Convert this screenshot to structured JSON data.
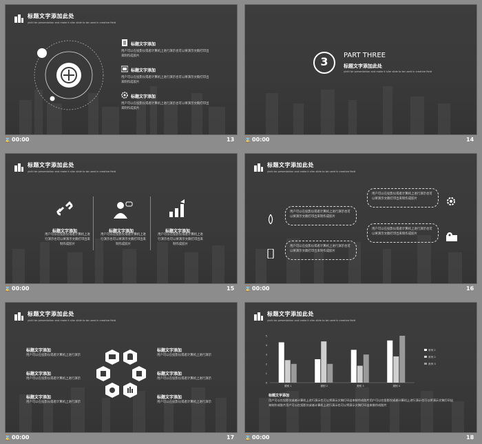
{
  "slides": {
    "s13": {
      "title": "标题文字添加此处",
      "subtitle": "yiniti be presentation and make it slim slide to be used in creative field",
      "items": [
        {
          "label": "标题文字添加",
          "text": "用户可以在投影仪或者计算机上进行演示也可以将演示文稿打印出来制作成胶片"
        },
        {
          "label": "标题文字添加",
          "text": "用户可以在投影仪或者计算机上进行演示也可以将演示文稿打印出来制作成胶片"
        },
        {
          "label": "标题文字添加",
          "text": "用户可以在投影仪或者计算机上进行演示也可以将演示文稿打印出来制作成胶片"
        }
      ],
      "time": "00:00",
      "num": "13"
    },
    "s14": {
      "badge": "3",
      "part": "PART THREE",
      "title": "标题文字添加此处",
      "subtitle": "yiniti be presentation and make it slim slide to be used in creative field",
      "time": "00:00",
      "num": "14"
    },
    "s15": {
      "title": "标题文字添加此处",
      "subtitle": "yiniti be presentation and make it slim slide to be used in creative field",
      "cols": [
        {
          "label": "标题文字添加",
          "text": "用户可以在投影仪或者计算机上进行演示也可以将演示文稿打印出来制作成胶片"
        },
        {
          "label": "标题文字添加",
          "text": "用户可以在投影仪或者计算机上进行演示也可以将演示文稿打印出来制作成胶片"
        },
        {
          "label": "标题文字添加",
          "text": "用户可以在投影仪或者计算机上进行演示也可以将演示文稿打印出来制作成胶片"
        }
      ],
      "time": "00:00",
      "num": "15"
    },
    "s16": {
      "title": "标题文字添加此处",
      "subtitle": "yiniti be presentation and make it slim slide to be used in creative field",
      "bubbles": [
        "用户可以在投影仪或者计算机上进行演示也可以将演示文稿打印出来制作成胶片",
        "用户可以在投影仪或者计算机上进行演示也可以将演示文稿打印出来制作成胶片",
        "用户可以在投影仪或者计算机上进行演示也可以将演示文稿打印出来制作成胶片",
        "用户可以在投影仪或者计算机上进行演示也可以将演示文稿打印出来制作成胶片"
      ],
      "time": "00:00",
      "num": "16"
    },
    "s17": {
      "title": "标题文字添加此处",
      "subtitle": "yiniti be presentation and make it slim slide to be used in creative field",
      "left": [
        {
          "label": "标题文字添加",
          "text": "用户可以在投影仪或者计算机上进行演示"
        },
        {
          "label": "标题文字添加",
          "text": "用户可以在投影仪或者计算机上进行演示"
        },
        {
          "label": "标题文字添加",
          "text": "用户可以在投影仪或者计算机上进行演示"
        }
      ],
      "right": [
        {
          "label": "标题文字添加",
          "text": "用户可以在投影仪或者计算机上进行演示"
        },
        {
          "label": "标题文字添加",
          "text": "用户可以在投影仪或者计算机上进行演示"
        },
        {
          "label": "标题文字添加",
          "text": "用户可以在投影仪或者计算机上进行演示"
        }
      ],
      "time": "00:00",
      "num": "17"
    },
    "s18": {
      "title": "标题文字添加此处",
      "subtitle": "yiniti be presentation and make it slim slide to be used in creative field",
      "text_label": "标题文字添加",
      "text": "用户可以在投影仪或者计算机上进行演示也可以将演示文稿打印出来制作成胶片用户可以在投影仪或者计算机上进行演示也可以将演示文稿打印出来制作成胶片用户可以在投影仪或者计算机上进行演示也可以将演示文稿打印出来制作成胶片",
      "time": "00:00",
      "num": "18"
    }
  },
  "chart_data": {
    "type": "bar",
    "categories": [
      "类别 1",
      "类别 2",
      "类别 3",
      "类别 4"
    ],
    "series": [
      {
        "name": "系列 1",
        "values": [
          4.3,
          2.5,
          3.5,
          4.5
        ],
        "color": "#ffffff"
      },
      {
        "name": "系列 2",
        "values": [
          2.4,
          4.4,
          1.8,
          2.8
        ],
        "color": "#cfcfcf"
      },
      {
        "name": "系列 3",
        "values": [
          2.0,
          2.0,
          3.0,
          5.0
        ],
        "color": "#9a9a9a"
      }
    ],
    "yticks": [
      "0",
      "1",
      "2",
      "3",
      "4",
      "5"
    ],
    "ylim": [
      0,
      5
    ],
    "legend": "right",
    "grid": false
  }
}
